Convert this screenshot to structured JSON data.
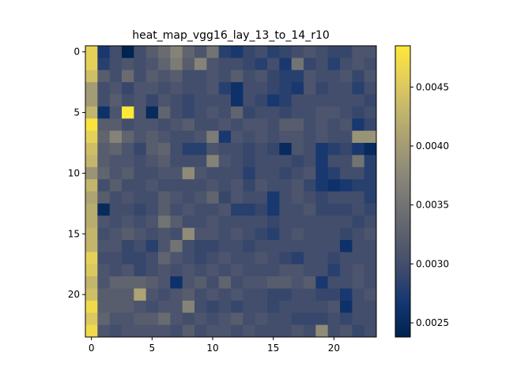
{
  "chart_data": {
    "type": "heatmap",
    "title": "heat_map_vgg16_lay_13_to_14_r10",
    "xlabel": "",
    "ylabel": "",
    "rows": 24,
    "cols": 24,
    "x_ticks": [
      "0",
      "5",
      "10",
      "15",
      "20"
    ],
    "y_ticks": [
      "0",
      "5",
      "10",
      "15",
      "20"
    ],
    "colorbar": {
      "min": 0.00238,
      "max": 0.00485,
      "ticks": [
        "0.0025",
        "0.0030",
        "0.0035",
        "0.0040",
        "0.0045"
      ],
      "colormap": "cividis",
      "gradient_colors": [
        "#00224e",
        "#123570",
        "#3b496c",
        "#575d6d",
        "#707173",
        "#8a8779",
        "#a69d75",
        "#c4b56c",
        "#e4cf5b",
        "#fee838"
      ]
    },
    "grid": false,
    "values": [
      [
        0.0046,
        0.0027,
        0.003,
        0.0024,
        0.003,
        0.0032,
        0.0034,
        0.0037,
        0.0033,
        0.0031,
        0.0035,
        0.0028,
        0.0027,
        0.0029,
        0.003,
        0.0028,
        0.0029,
        0.003,
        0.0031,
        0.003,
        0.0029,
        0.0029,
        0.0031,
        0.0031
      ],
      [
        0.0046,
        0.0028,
        0.003,
        0.0031,
        0.003,
        0.0031,
        0.0033,
        0.0036,
        0.0032,
        0.0037,
        0.0031,
        0.003,
        0.003,
        0.0029,
        0.0028,
        0.003,
        0.0027,
        0.0035,
        0.0029,
        0.003,
        0.0028,
        0.003,
        0.0031,
        0.003
      ],
      [
        0.0044,
        0.0032,
        0.003,
        0.0034,
        0.003,
        0.0032,
        0.0031,
        0.0032,
        0.003,
        0.003,
        0.0031,
        0.003,
        0.0032,
        0.003,
        0.0031,
        0.0029,
        0.0028,
        0.0028,
        0.0031,
        0.003,
        0.003,
        0.0031,
        0.0029,
        0.0031
      ],
      [
        0.004,
        0.003,
        0.0031,
        0.0029,
        0.0031,
        0.0031,
        0.003,
        0.0031,
        0.003,
        0.003,
        0.0031,
        0.0028,
        0.0026,
        0.003,
        0.003,
        0.0029,
        0.0028,
        0.0027,
        0.0031,
        0.0029,
        0.003,
        0.003,
        0.0028,
        0.003
      ],
      [
        0.004,
        0.003,
        0.0032,
        0.003,
        0.0031,
        0.0029,
        0.0031,
        0.003,
        0.0029,
        0.003,
        0.003,
        0.003,
        0.0026,
        0.003,
        0.0029,
        0.0027,
        0.0028,
        0.003,
        0.003,
        0.003,
        0.003,
        0.003,
        0.003,
        0.0029
      ],
      [
        0.0043,
        0.0026,
        0.0031,
        0.00485,
        0.0031,
        0.0025,
        0.0033,
        0.003,
        0.0029,
        0.003,
        0.0031,
        0.003,
        0.0033,
        0.0029,
        0.003,
        0.003,
        0.0029,
        0.003,
        0.003,
        0.0031,
        0.0031,
        0.003,
        0.0029,
        0.003
      ],
      [
        0.0048,
        0.0032,
        0.0032,
        0.003,
        0.0031,
        0.0031,
        0.003,
        0.0031,
        0.0032,
        0.003,
        0.003,
        0.0031,
        0.003,
        0.0031,
        0.0031,
        0.003,
        0.0032,
        0.0032,
        0.003,
        0.0031,
        0.003,
        0.0031,
        0.0027,
        0.0029
      ],
      [
        0.0046,
        0.0033,
        0.0037,
        0.0033,
        0.0031,
        0.0032,
        0.0031,
        0.003,
        0.003,
        0.0031,
        0.0036,
        0.0027,
        0.0031,
        0.003,
        0.0031,
        0.003,
        0.0031,
        0.0031,
        0.003,
        0.0031,
        0.003,
        0.003,
        0.0039,
        0.0039
      ],
      [
        0.0044,
        0.0032,
        0.0033,
        0.0031,
        0.0029,
        0.0032,
        0.0033,
        0.003,
        0.0028,
        0.0028,
        0.0031,
        0.003,
        0.003,
        0.0029,
        0.003,
        0.0029,
        0.0025,
        0.0031,
        0.003,
        0.0027,
        0.0028,
        0.0029,
        0.0027,
        0.0025
      ],
      [
        0.0043,
        0.0032,
        0.0031,
        0.0031,
        0.003,
        0.0031,
        0.0032,
        0.003,
        0.003,
        0.003,
        0.0037,
        0.0031,
        0.003,
        0.0029,
        0.003,
        0.003,
        0.003,
        0.0029,
        0.003,
        0.0027,
        0.003,
        0.003,
        0.0035,
        0.0028
      ],
      [
        0.0039,
        0.0033,
        0.0031,
        0.0032,
        0.003,
        0.003,
        0.0031,
        0.0031,
        0.0038,
        0.0031,
        0.003,
        0.003,
        0.003,
        0.0028,
        0.003,
        0.003,
        0.0029,
        0.003,
        0.0031,
        0.0027,
        0.0028,
        0.003,
        0.003,
        0.0028
      ],
      [
        0.0043,
        0.003,
        0.0032,
        0.003,
        0.003,
        0.0031,
        0.003,
        0.003,
        0.003,
        0.003,
        0.0031,
        0.003,
        0.0031,
        0.0029,
        0.0031,
        0.003,
        0.003,
        0.0031,
        0.0029,
        0.0027,
        0.0026,
        0.0027,
        0.0028,
        0.0028
      ],
      [
        0.0041,
        0.0032,
        0.003,
        0.0031,
        0.003,
        0.003,
        0.0032,
        0.0031,
        0.003,
        0.0031,
        0.0033,
        0.0029,
        0.0031,
        0.003,
        0.003,
        0.0027,
        0.003,
        0.0031,
        0.003,
        0.0029,
        0.003,
        0.003,
        0.003,
        0.0028
      ],
      [
        0.0042,
        0.0025,
        0.003,
        0.003,
        0.0029,
        0.003,
        0.0032,
        0.003,
        0.0031,
        0.003,
        0.003,
        0.0031,
        0.0028,
        0.0028,
        0.0029,
        0.0027,
        0.003,
        0.003,
        0.0031,
        0.0029,
        0.0029,
        0.0029,
        0.003,
        0.0029
      ],
      [
        0.0042,
        0.0031,
        0.003,
        0.0031,
        0.003,
        0.0031,
        0.0035,
        0.0032,
        0.003,
        0.003,
        0.0031,
        0.003,
        0.003,
        0.003,
        0.003,
        0.0029,
        0.003,
        0.003,
        0.003,
        0.003,
        0.003,
        0.003,
        0.0029,
        0.003
      ],
      [
        0.0043,
        0.003,
        0.0031,
        0.0032,
        0.0031,
        0.003,
        0.0031,
        0.003,
        0.0038,
        0.0031,
        0.0031,
        0.003,
        0.0031,
        0.003,
        0.0029,
        0.0028,
        0.003,
        0.0031,
        0.003,
        0.003,
        0.003,
        0.0029,
        0.003,
        0.0031
      ],
      [
        0.0043,
        0.0031,
        0.0031,
        0.0029,
        0.003,
        0.0028,
        0.0031,
        0.0035,
        0.003,
        0.0029,
        0.0029,
        0.003,
        0.003,
        0.0029,
        0.003,
        0.003,
        0.003,
        0.003,
        0.003,
        0.003,
        0.003,
        0.0026,
        0.003,
        0.003
      ],
      [
        0.0046,
        0.003,
        0.003,
        0.0029,
        0.0029,
        0.003,
        0.0033,
        0.0031,
        0.003,
        0.0029,
        0.003,
        0.0031,
        0.003,
        0.003,
        0.0031,
        0.003,
        0.0029,
        0.0028,
        0.003,
        0.003,
        0.0029,
        0.003,
        0.003,
        0.003
      ],
      [
        0.0045,
        0.0031,
        0.003,
        0.0031,
        0.0029,
        0.003,
        0.0031,
        0.003,
        0.0031,
        0.003,
        0.0031,
        0.003,
        0.0031,
        0.003,
        0.003,
        0.003,
        0.0031,
        0.0031,
        0.003,
        0.003,
        0.0028,
        0.003,
        0.0031,
        0.003
      ],
      [
        0.0043,
        0.0031,
        0.0033,
        0.0033,
        0.0033,
        0.0032,
        0.0031,
        0.0026,
        0.0031,
        0.0032,
        0.003,
        0.0033,
        0.003,
        0.0031,
        0.0031,
        0.0032,
        0.0032,
        0.0031,
        0.0032,
        0.0027,
        0.003,
        0.003,
        0.0031,
        0.003
      ],
      [
        0.0044,
        0.0032,
        0.0032,
        0.0032,
        0.0041,
        0.0031,
        0.003,
        0.0031,
        0.0032,
        0.003,
        0.0031,
        0.003,
        0.0031,
        0.003,
        0.003,
        0.0029,
        0.0029,
        0.003,
        0.003,
        0.0029,
        0.0029,
        0.0027,
        0.003,
        0.0031
      ],
      [
        0.0047,
        0.0032,
        0.0032,
        0.0032,
        0.0031,
        0.003,
        0.0031,
        0.0031,
        0.0037,
        0.003,
        0.0029,
        0.003,
        0.0029,
        0.003,
        0.003,
        0.0029,
        0.003,
        0.003,
        0.003,
        0.003,
        0.0031,
        0.0026,
        0.003,
        0.003
      ],
      [
        0.0045,
        0.0033,
        0.0031,
        0.0031,
        0.0032,
        0.0032,
        0.0034,
        0.0031,
        0.003,
        0.0031,
        0.003,
        0.0031,
        0.0032,
        0.003,
        0.0031,
        0.003,
        0.003,
        0.0029,
        0.0029,
        0.0029,
        0.003,
        0.0029,
        0.003,
        0.003
      ],
      [
        0.0047,
        0.0031,
        0.003,
        0.0031,
        0.0031,
        0.0031,
        0.0031,
        0.003,
        0.0032,
        0.003,
        0.0031,
        0.0031,
        0.003,
        0.0031,
        0.003,
        0.003,
        0.003,
        0.0031,
        0.003,
        0.0038,
        0.003,
        0.0031,
        0.0029,
        0.003
      ]
    ]
  }
}
